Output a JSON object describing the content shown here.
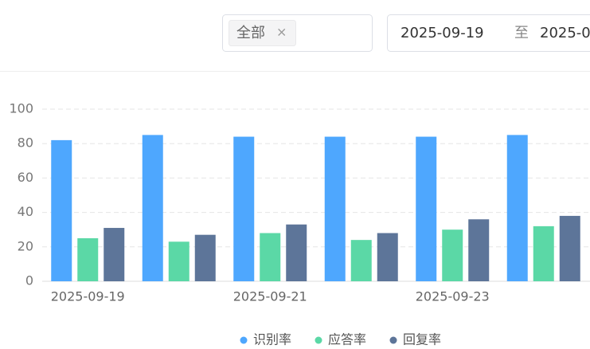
{
  "filter": {
    "tag": "全部",
    "start_date": "2025-09-19",
    "separator": "至",
    "end_date": "2025-0"
  },
  "chart_data": {
    "type": "bar",
    "categories": [
      "2025-09-19",
      null,
      "2025-09-21",
      null,
      "2025-09-23",
      null
    ],
    "series": [
      {
        "name": "识别率",
        "color": "#4ea7fe",
        "values": [
          82,
          85,
          84,
          84,
          84,
          85
        ]
      },
      {
        "name": "应答率",
        "color": "#5bd8a6",
        "values": [
          25,
          23,
          28,
          24,
          30,
          32
        ]
      },
      {
        "name": "回复率",
        "color": "#5d7599",
        "values": [
          31,
          27,
          33,
          28,
          36,
          38
        ]
      }
    ],
    "ylim": [
      0,
      100
    ],
    "yticks": [
      0,
      20,
      40,
      60,
      80,
      100
    ],
    "grid": true,
    "legend": "bottom"
  }
}
